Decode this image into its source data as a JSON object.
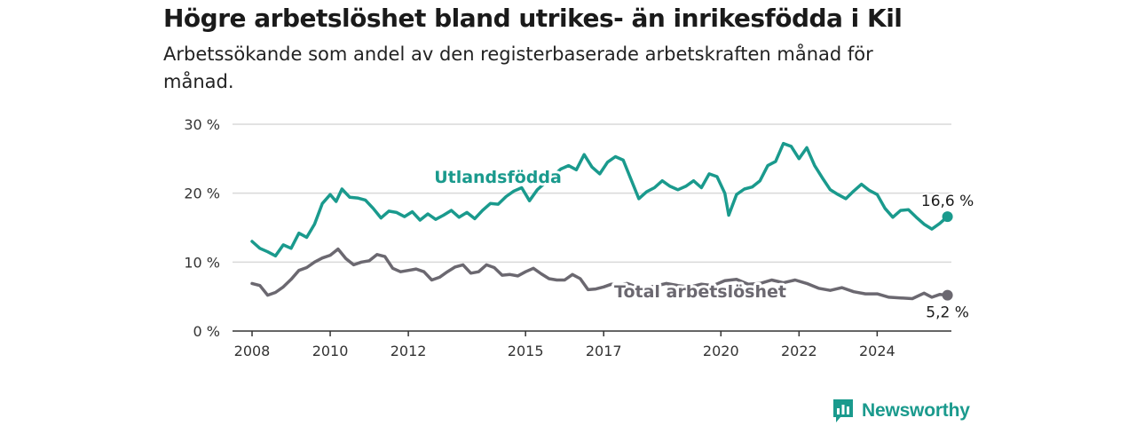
{
  "title": "Högre arbetslöshet bland utrikes- än inrikesfödda i Kil",
  "subtitle": "Arbetssökande som andel av den registerbaserade arbetskraften månad för månad.",
  "brand": {
    "name": "Newsworthy",
    "icon": "newsworthy-logo-icon"
  },
  "colors": {
    "foreign": "#1a9a8d",
    "total": "#6b6870",
    "grid": "#d9d9d9",
    "axis": "#333333"
  },
  "chart_data": {
    "type": "line",
    "title": "Högre arbetslöshet bland utrikes- än inrikesfödda i Kil",
    "subtitle": "Arbetssökande som andel av den registerbaserade arbetskraften månad för månad.",
    "xlabel": "",
    "ylabel": "",
    "ylim": [
      0,
      30
    ],
    "xlim": [
      2007.5,
      2025.9
    ],
    "y_ticks": [
      0,
      10,
      20,
      30
    ],
    "y_tick_labels": [
      "0 %",
      "10 %",
      "20 %",
      "30 %"
    ],
    "x_ticks": [
      2008,
      2010,
      2012,
      2015,
      2017,
      2020,
      2022,
      2024
    ],
    "x_tick_labels": [
      "2008",
      "2010",
      "2012",
      "2015",
      "2017",
      "2020",
      "2022",
      "2024"
    ],
    "grid": true,
    "legend": "inline labels",
    "series": [
      {
        "name": "Utlandsfödda",
        "color": "#1a9a8d",
        "end_label": "16,6 %",
        "points": [
          [
            2008.0,
            13.0
          ],
          [
            2008.2,
            12.0
          ],
          [
            2008.4,
            11.5
          ],
          [
            2008.6,
            10.9
          ],
          [
            2008.8,
            12.5
          ],
          [
            2009.0,
            12.0
          ],
          [
            2009.2,
            14.2
          ],
          [
            2009.4,
            13.6
          ],
          [
            2009.6,
            15.5
          ],
          [
            2009.8,
            18.5
          ],
          [
            2010.0,
            19.8
          ],
          [
            2010.15,
            18.8
          ],
          [
            2010.3,
            20.6
          ],
          [
            2010.5,
            19.4
          ],
          [
            2010.7,
            19.3
          ],
          [
            2010.9,
            19.0
          ],
          [
            2011.1,
            17.8
          ],
          [
            2011.3,
            16.4
          ],
          [
            2011.5,
            17.4
          ],
          [
            2011.7,
            17.2
          ],
          [
            2011.9,
            16.6
          ],
          [
            2012.1,
            17.3
          ],
          [
            2012.3,
            16.1
          ],
          [
            2012.5,
            17.0
          ],
          [
            2012.7,
            16.2
          ],
          [
            2012.9,
            16.8
          ],
          [
            2013.1,
            17.5
          ],
          [
            2013.3,
            16.5
          ],
          [
            2013.5,
            17.2
          ],
          [
            2013.7,
            16.3
          ],
          [
            2013.9,
            17.5
          ],
          [
            2014.1,
            18.5
          ],
          [
            2014.3,
            18.4
          ],
          [
            2014.5,
            19.5
          ],
          [
            2014.7,
            20.3
          ],
          [
            2014.9,
            20.8
          ],
          [
            2015.1,
            18.9
          ],
          [
            2015.3,
            20.5
          ],
          [
            2015.5,
            21.5
          ],
          [
            2015.7,
            22.5
          ],
          [
            2015.9,
            23.5
          ],
          [
            2016.1,
            24.0
          ],
          [
            2016.3,
            23.4
          ],
          [
            2016.5,
            25.6
          ],
          [
            2016.7,
            23.8
          ],
          [
            2016.9,
            22.8
          ],
          [
            2017.1,
            24.5
          ],
          [
            2017.3,
            25.3
          ],
          [
            2017.5,
            24.8
          ],
          [
            2017.7,
            22.0
          ],
          [
            2017.9,
            19.2
          ],
          [
            2018.1,
            20.2
          ],
          [
            2018.3,
            20.8
          ],
          [
            2018.5,
            21.8
          ],
          [
            2018.7,
            21.0
          ],
          [
            2018.9,
            20.5
          ],
          [
            2019.1,
            21.0
          ],
          [
            2019.3,
            21.8
          ],
          [
            2019.5,
            20.8
          ],
          [
            2019.7,
            22.8
          ],
          [
            2019.9,
            22.4
          ],
          [
            2020.1,
            20.0
          ],
          [
            2020.2,
            16.8
          ],
          [
            2020.4,
            19.8
          ],
          [
            2020.6,
            20.6
          ],
          [
            2020.8,
            20.9
          ],
          [
            2021.0,
            21.8
          ],
          [
            2021.2,
            24.0
          ],
          [
            2021.4,
            24.6
          ],
          [
            2021.6,
            27.2
          ],
          [
            2021.8,
            26.8
          ],
          [
            2022.0,
            25.0
          ],
          [
            2022.2,
            26.6
          ],
          [
            2022.4,
            24.0
          ],
          [
            2022.6,
            22.2
          ],
          [
            2022.8,
            20.5
          ],
          [
            2023.0,
            19.8
          ],
          [
            2023.2,
            19.2
          ],
          [
            2023.4,
            20.3
          ],
          [
            2023.6,
            21.3
          ],
          [
            2023.8,
            20.4
          ],
          [
            2024.0,
            19.8
          ],
          [
            2024.2,
            17.8
          ],
          [
            2024.4,
            16.5
          ],
          [
            2024.6,
            17.5
          ],
          [
            2024.8,
            17.6
          ],
          [
            2025.0,
            16.5
          ],
          [
            2025.2,
            15.5
          ],
          [
            2025.4,
            14.8
          ],
          [
            2025.6,
            15.6
          ],
          [
            2025.8,
            16.6
          ]
        ]
      },
      {
        "name": "Total arbetslöshet",
        "color": "#6b6870",
        "end_label": "5,2 %",
        "points": [
          [
            2008.0,
            6.9
          ],
          [
            2008.2,
            6.6
          ],
          [
            2008.4,
            5.2
          ],
          [
            2008.6,
            5.6
          ],
          [
            2008.8,
            6.4
          ],
          [
            2009.0,
            7.5
          ],
          [
            2009.2,
            8.8
          ],
          [
            2009.4,
            9.2
          ],
          [
            2009.6,
            10.0
          ],
          [
            2009.8,
            10.6
          ],
          [
            2010.0,
            11.0
          ],
          [
            2010.2,
            11.9
          ],
          [
            2010.4,
            10.5
          ],
          [
            2010.6,
            9.6
          ],
          [
            2010.8,
            10.0
          ],
          [
            2011.0,
            10.2
          ],
          [
            2011.2,
            11.1
          ],
          [
            2011.4,
            10.8
          ],
          [
            2011.6,
            9.1
          ],
          [
            2011.8,
            8.6
          ],
          [
            2012.0,
            8.8
          ],
          [
            2012.2,
            9.0
          ],
          [
            2012.4,
            8.6
          ],
          [
            2012.6,
            7.4
          ],
          [
            2012.8,
            7.8
          ],
          [
            2013.0,
            8.6
          ],
          [
            2013.2,
            9.3
          ],
          [
            2013.4,
            9.6
          ],
          [
            2013.6,
            8.4
          ],
          [
            2013.8,
            8.6
          ],
          [
            2014.0,
            9.6
          ],
          [
            2014.2,
            9.2
          ],
          [
            2014.4,
            8.1
          ],
          [
            2014.6,
            8.2
          ],
          [
            2014.8,
            8.0
          ],
          [
            2015.0,
            8.6
          ],
          [
            2015.2,
            9.1
          ],
          [
            2015.4,
            8.3
          ],
          [
            2015.6,
            7.6
          ],
          [
            2015.8,
            7.4
          ],
          [
            2016.0,
            7.4
          ],
          [
            2016.2,
            8.2
          ],
          [
            2016.4,
            7.6
          ],
          [
            2016.6,
            6.0
          ],
          [
            2016.8,
            6.1
          ],
          [
            2017.0,
            6.4
          ],
          [
            2017.2,
            6.8
          ],
          [
            2017.4,
            6.7
          ],
          [
            2017.6,
            6.9
          ],
          [
            2017.8,
            6.5
          ],
          [
            2018.0,
            6.2
          ],
          [
            2018.3,
            6.5
          ],
          [
            2018.6,
            6.9
          ],
          [
            2018.9,
            6.6
          ],
          [
            2019.2,
            6.4
          ],
          [
            2019.5,
            6.8
          ],
          [
            2019.8,
            6.6
          ],
          [
            2020.1,
            7.3
          ],
          [
            2020.4,
            7.5
          ],
          [
            2020.7,
            6.8
          ],
          [
            2021.0,
            6.9
          ],
          [
            2021.3,
            7.4
          ],
          [
            2021.6,
            7.0
          ],
          [
            2021.9,
            7.4
          ],
          [
            2022.2,
            6.9
          ],
          [
            2022.5,
            6.2
          ],
          [
            2022.8,
            5.9
          ],
          [
            2023.1,
            6.3
          ],
          [
            2023.4,
            5.7
          ],
          [
            2023.7,
            5.4
          ],
          [
            2024.0,
            5.4
          ],
          [
            2024.3,
            4.9
          ],
          [
            2024.6,
            4.8
          ],
          [
            2024.9,
            4.7
          ],
          [
            2025.2,
            5.5
          ],
          [
            2025.4,
            4.9
          ],
          [
            2025.6,
            5.3
          ],
          [
            2025.8,
            5.2
          ]
        ]
      }
    ]
  }
}
